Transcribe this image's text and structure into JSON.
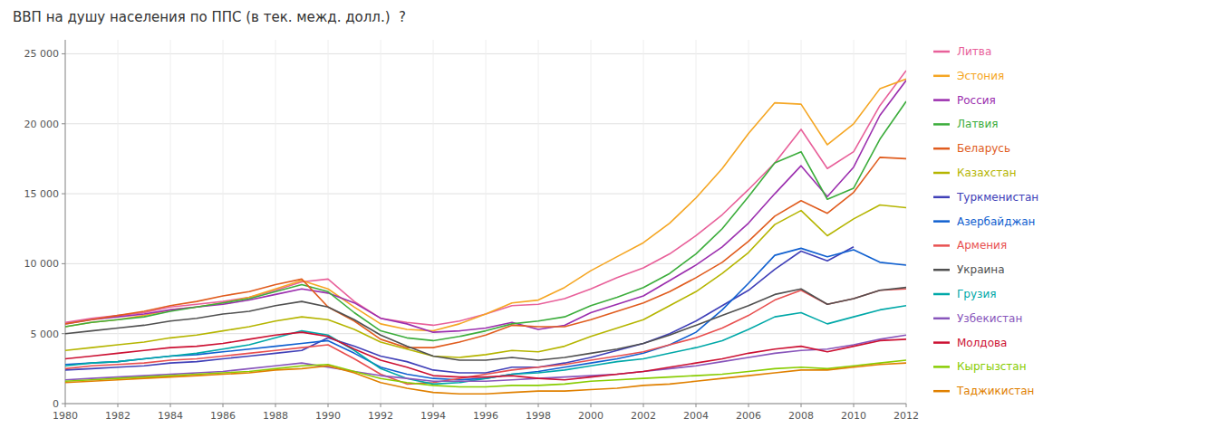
{
  "chart_data": {
    "type": "line",
    "title": "ВВП на душу населения по ППС (в тек. межд. долл.)  ?",
    "x": [
      1980,
      1981,
      1982,
      1983,
      1984,
      1985,
      1986,
      1987,
      1988,
      1989,
      1990,
      1991,
      1992,
      1993,
      1994,
      1995,
      1996,
      1997,
      1998,
      1999,
      2000,
      2001,
      2002,
      2003,
      2004,
      2005,
      2006,
      2007,
      2008,
      2009,
      2010,
      2011,
      2012
    ],
    "series": [
      {
        "name": "Литва",
        "color": "#e8609a",
        "values": [
          5800,
          6100,
          6300,
          6500,
          6900,
          7100,
          7300,
          7600,
          8100,
          8700,
          8900,
          7300,
          6100,
          5800,
          5600,
          5900,
          6400,
          7000,
          7100,
          7500,
          8200,
          9000,
          9700,
          10700,
          12000,
          13500,
          15300,
          17200,
          19600,
          16800,
          18000,
          21300,
          23800
        ]
      },
      {
        "name": "Эстония",
        "color": "#f5a623",
        "values": [
          5500,
          5800,
          6000,
          6300,
          6700,
          6900,
          7200,
          7600,
          8200,
          8800,
          8200,
          6900,
          5700,
          5300,
          5200,
          5700,
          6400,
          7200,
          7400,
          8300,
          9500,
          10500,
          11500,
          12900,
          14700,
          16800,
          19300,
          21500,
          21400,
          18500,
          20000,
          22500,
          23200
        ]
      },
      {
        "name": "Россия",
        "color": "#9b2eae",
        "values": [
          5700,
          6000,
          6200,
          6400,
          6700,
          6900,
          7100,
          7400,
          7800,
          8200,
          7900,
          7200,
          6100,
          5700,
          5100,
          5200,
          5400,
          5800,
          5300,
          5600,
          6500,
          7100,
          7700,
          8800,
          9900,
          11200,
          12900,
          15000,
          17000,
          14800,
          16900,
          20600,
          23100
        ]
      },
      {
        "name": "Латвия",
        "color": "#3cad3c",
        "values": [
          5500,
          5800,
          6000,
          6200,
          6600,
          6900,
          7200,
          7500,
          8000,
          8500,
          8000,
          6500,
          5200,
          4700,
          4500,
          4800,
          5200,
          5700,
          5900,
          6200,
          7000,
          7600,
          8300,
          9300,
          10700,
          12500,
          14800,
          17200,
          18000,
          14600,
          15400,
          18900,
          21600
        ]
      },
      {
        "name": "Беларусь",
        "color": "#e05c1e",
        "values": [
          5700,
          6000,
          6300,
          6600,
          7000,
          7300,
          7700,
          8000,
          8500,
          8900,
          6900,
          5900,
          4600,
          4000,
          4000,
          4400,
          4900,
          5600,
          5500,
          5500,
          6000,
          6600,
          7200,
          8000,
          9000,
          10100,
          11600,
          13400,
          14500,
          13600,
          15100,
          17600,
          17500
        ]
      },
      {
        "name": "Казахстан",
        "color": "#b5b500",
        "values": [
          3800,
          4000,
          4200,
          4400,
          4700,
          4900,
          5200,
          5500,
          5900,
          6200,
          6000,
          5300,
          4400,
          3900,
          3400,
          3300,
          3500,
          3800,
          3700,
          4100,
          4800,
          5400,
          6000,
          7000,
          8000,
          9300,
          10800,
          12800,
          13800,
          12000,
          13200,
          14200,
          14000
        ]
      },
      {
        "name": "Туркменистан",
        "color": "#4040b8",
        "values": [
          2400,
          2500,
          2600,
          2700,
          2900,
          3000,
          3200,
          3400,
          3600,
          3800,
          4700,
          4100,
          3400,
          3000,
          2400,
          2200,
          2200,
          2600,
          2600,
          2900,
          3300,
          3800,
          4300,
          5000,
          5900,
          7000,
          8100,
          9600,
          10900,
          10200,
          11200,
          null,
          null
        ]
      },
      {
        "name": "Азербайджан",
        "color": "#1060d0",
        "values": [
          2800,
          2900,
          3000,
          3200,
          3400,
          3500,
          3700,
          3900,
          4100,
          4300,
          4500,
          3600,
          2600,
          2100,
          1800,
          1700,
          1800,
          2100,
          2300,
          2600,
          2900,
          3200,
          3600,
          4200,
          5100,
          6700,
          8600,
          10600,
          11100,
          10500,
          11000,
          10100,
          9900
        ]
      },
      {
        "name": "Армения",
        "color": "#e85050",
        "values": [
          2500,
          2700,
          2800,
          2900,
          3100,
          3200,
          3400,
          3600,
          3800,
          4000,
          4200,
          3200,
          2100,
          1400,
          1500,
          1800,
          2100,
          2400,
          2600,
          2800,
          3100,
          3400,
          3700,
          4200,
          4700,
          5400,
          6300,
          7400,
          8100,
          7100,
          7500,
          8100,
          8200
        ]
      },
      {
        "name": "Украина",
        "color": "#505050",
        "values": [
          5000,
          5200,
          5400,
          5600,
          5900,
          6100,
          6400,
          6600,
          7000,
          7300,
          6900,
          6000,
          4900,
          4100,
          3400,
          3100,
          3100,
          3300,
          3100,
          3300,
          3600,
          3900,
          4300,
          4900,
          5600,
          6300,
          7000,
          7800,
          8200,
          7100,
          7500,
          8100,
          8300
        ]
      },
      {
        "name": "Грузия",
        "color": "#00a8a8",
        "values": [
          2700,
          2900,
          3000,
          3200,
          3400,
          3600,
          3900,
          4200,
          4700,
          5200,
          4900,
          3800,
          2500,
          1800,
          1400,
          1500,
          1800,
          2100,
          2200,
          2400,
          2700,
          3000,
          3200,
          3600,
          4000,
          4500,
          5300,
          6200,
          6500,
          5700,
          6200,
          6700,
          7000
        ]
      },
      {
        "name": "Узбекистан",
        "color": "#8855bb",
        "values": [
          1700,
          1800,
          1900,
          2000,
          2100,
          2200,
          2300,
          2500,
          2700,
          2900,
          2600,
          2300,
          2000,
          1800,
          1600,
          1600,
          1600,
          1700,
          1800,
          1900,
          2000,
          2100,
          2300,
          2500,
          2700,
          3000,
          3300,
          3600,
          3800,
          3900,
          4200,
          4600,
          4900
        ]
      },
      {
        "name": "Молдова",
        "color": "#cc1133",
        "values": [
          3200,
          3400,
          3600,
          3800,
          4000,
          4100,
          4300,
          4600,
          4900,
          5100,
          4800,
          3900,
          3100,
          2600,
          2000,
          1900,
          1900,
          2000,
          1800,
          1700,
          1900,
          2100,
          2300,
          2600,
          2900,
          3200,
          3600,
          3900,
          4100,
          3700,
          4100,
          4500,
          4600
        ]
      },
      {
        "name": "Кыргызстан",
        "color": "#88cc00",
        "values": [
          1600,
          1700,
          1800,
          1900,
          2000,
          2100,
          2200,
          2300,
          2500,
          2700,
          2800,
          2300,
          1800,
          1500,
          1300,
          1200,
          1200,
          1300,
          1300,
          1400,
          1600,
          1700,
          1800,
          1900,
          2000,
          2100,
          2300,
          2500,
          2600,
          2500,
          2700,
          2900,
          3100
        ]
      },
      {
        "name": "Таджикистан",
        "color": "#e08000",
        "values": [
          1500,
          1600,
          1700,
          1800,
          1900,
          2000,
          2100,
          2200,
          2400,
          2500,
          2700,
          2200,
          1500,
          1100,
          800,
          700,
          700,
          800,
          900,
          900,
          1000,
          1100,
          1300,
          1400,
          1600,
          1800,
          2000,
          2200,
          2400,
          2400,
          2600,
          2800,
          2900
        ]
      }
    ],
    "xlim": [
      1980,
      2012
    ],
    "xticks": [
      1980,
      1982,
      1984,
      1986,
      1988,
      1990,
      1992,
      1994,
      1996,
      1998,
      2000,
      2002,
      2004,
      2006,
      2008,
      2010,
      2012
    ],
    "ylim": [
      0,
      26000
    ],
    "yticks": [
      0,
      {
        "value": 5000,
        "label": "5 000"
      },
      {
        "value": 10000,
        "label": "10 000"
      },
      {
        "value": 15000,
        "label": "15 000"
      },
      {
        "value": 20000,
        "label": "20 000"
      },
      {
        "value": 25000,
        "label": "25 000"
      }
    ],
    "grid": true,
    "legend": "right"
  }
}
